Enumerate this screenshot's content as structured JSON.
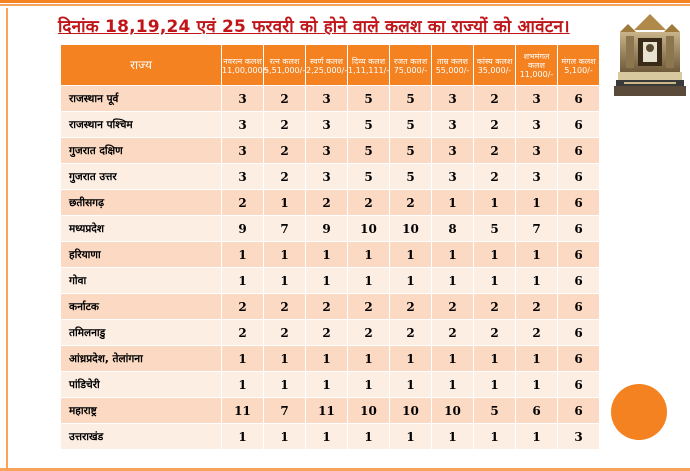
{
  "title": "दिनांक 18,19,24 एवं 25 फरवरी को होने वाले कलश का राज्यों को आवंटन।",
  "colors": {
    "accent": "#f58220",
    "title": "#c0161a",
    "row_dark": "#fbd9c2",
    "row_light": "#fdeee4"
  },
  "table": {
    "state_header": "राज्य",
    "columns": [
      {
        "name": "नवरत्न कलश",
        "price": "11,00,000/-"
      },
      {
        "name": "रत्न कलश",
        "price": "5,51,000/-"
      },
      {
        "name": "स्वर्ण कलश",
        "price": "2,25,000/-"
      },
      {
        "name": "दिव्य कलश",
        "price": "1,11,111/-"
      },
      {
        "name": "रजत कलश",
        "price": "75,000/-"
      },
      {
        "name": "ताम्र कलश",
        "price": "55,000/-"
      },
      {
        "name": "कांस्य कलश",
        "price": "35,000/-"
      },
      {
        "name": "शभमंगल कलश",
        "price": "11,000/-"
      },
      {
        "name": "मंगल कलश",
        "price": "5,100/-"
      }
    ],
    "rows": [
      {
        "state": "राजस्थान पूर्व",
        "values": [
          "3",
          "2",
          "3",
          "5",
          "5",
          "3",
          "2",
          "3",
          "6"
        ]
      },
      {
        "state": "राजस्थान पश्चिम",
        "values": [
          "3",
          "2",
          "3",
          "5",
          "5",
          "3",
          "2",
          "3",
          "6"
        ]
      },
      {
        "state": "गुजरात दक्षिण",
        "values": [
          "3",
          "2",
          "3",
          "5",
          "5",
          "3",
          "2",
          "3",
          "6"
        ]
      },
      {
        "state": "गुजरात उत्तर",
        "values": [
          "3",
          "2",
          "3",
          "5",
          "5",
          "3",
          "2",
          "3",
          "6"
        ]
      },
      {
        "state": "छतीसगढ़",
        "values": [
          "2",
          "1",
          "2",
          "2",
          "2",
          "1",
          "1",
          "1",
          "6"
        ]
      },
      {
        "state": "मध्यप्रदेश",
        "values": [
          "9",
          "7",
          "9",
          "10",
          "10",
          "8",
          "5",
          "7",
          "6"
        ]
      },
      {
        "state": "हरियाणा",
        "values": [
          "1",
          "1",
          "1",
          "1",
          "1",
          "1",
          "1",
          "1",
          "6"
        ]
      },
      {
        "state": "गोवा",
        "values": [
          "1",
          "1",
          "1",
          "1",
          "1",
          "1",
          "1",
          "1",
          "6"
        ]
      },
      {
        "state": "कर्नाटक",
        "values": [
          "2",
          "2",
          "2",
          "2",
          "2",
          "2",
          "2",
          "2",
          "6"
        ]
      },
      {
        "state": "तमिलनाडु",
        "values": [
          "2",
          "2",
          "2",
          "2",
          "2",
          "2",
          "2",
          "2",
          "6"
        ]
      },
      {
        "state": "आंध्रप्रदेश, तेलांगना",
        "values": [
          "1",
          "1",
          "1",
          "1",
          "1",
          "1",
          "1",
          "1",
          "6"
        ]
      },
      {
        "state": "पांडिचेरी",
        "values": [
          "1",
          "1",
          "1",
          "1",
          "1",
          "1",
          "1",
          "1",
          "6"
        ]
      },
      {
        "state": "महाराष्ट्र",
        "values": [
          "11",
          "7",
          "11",
          "10",
          "10",
          "10",
          "5",
          "6",
          "6"
        ]
      },
      {
        "state": "उत्तराखंड",
        "values": [
          "1",
          "1",
          "1",
          "1",
          "1",
          "1",
          "1",
          "1",
          "3"
        ]
      }
    ]
  }
}
